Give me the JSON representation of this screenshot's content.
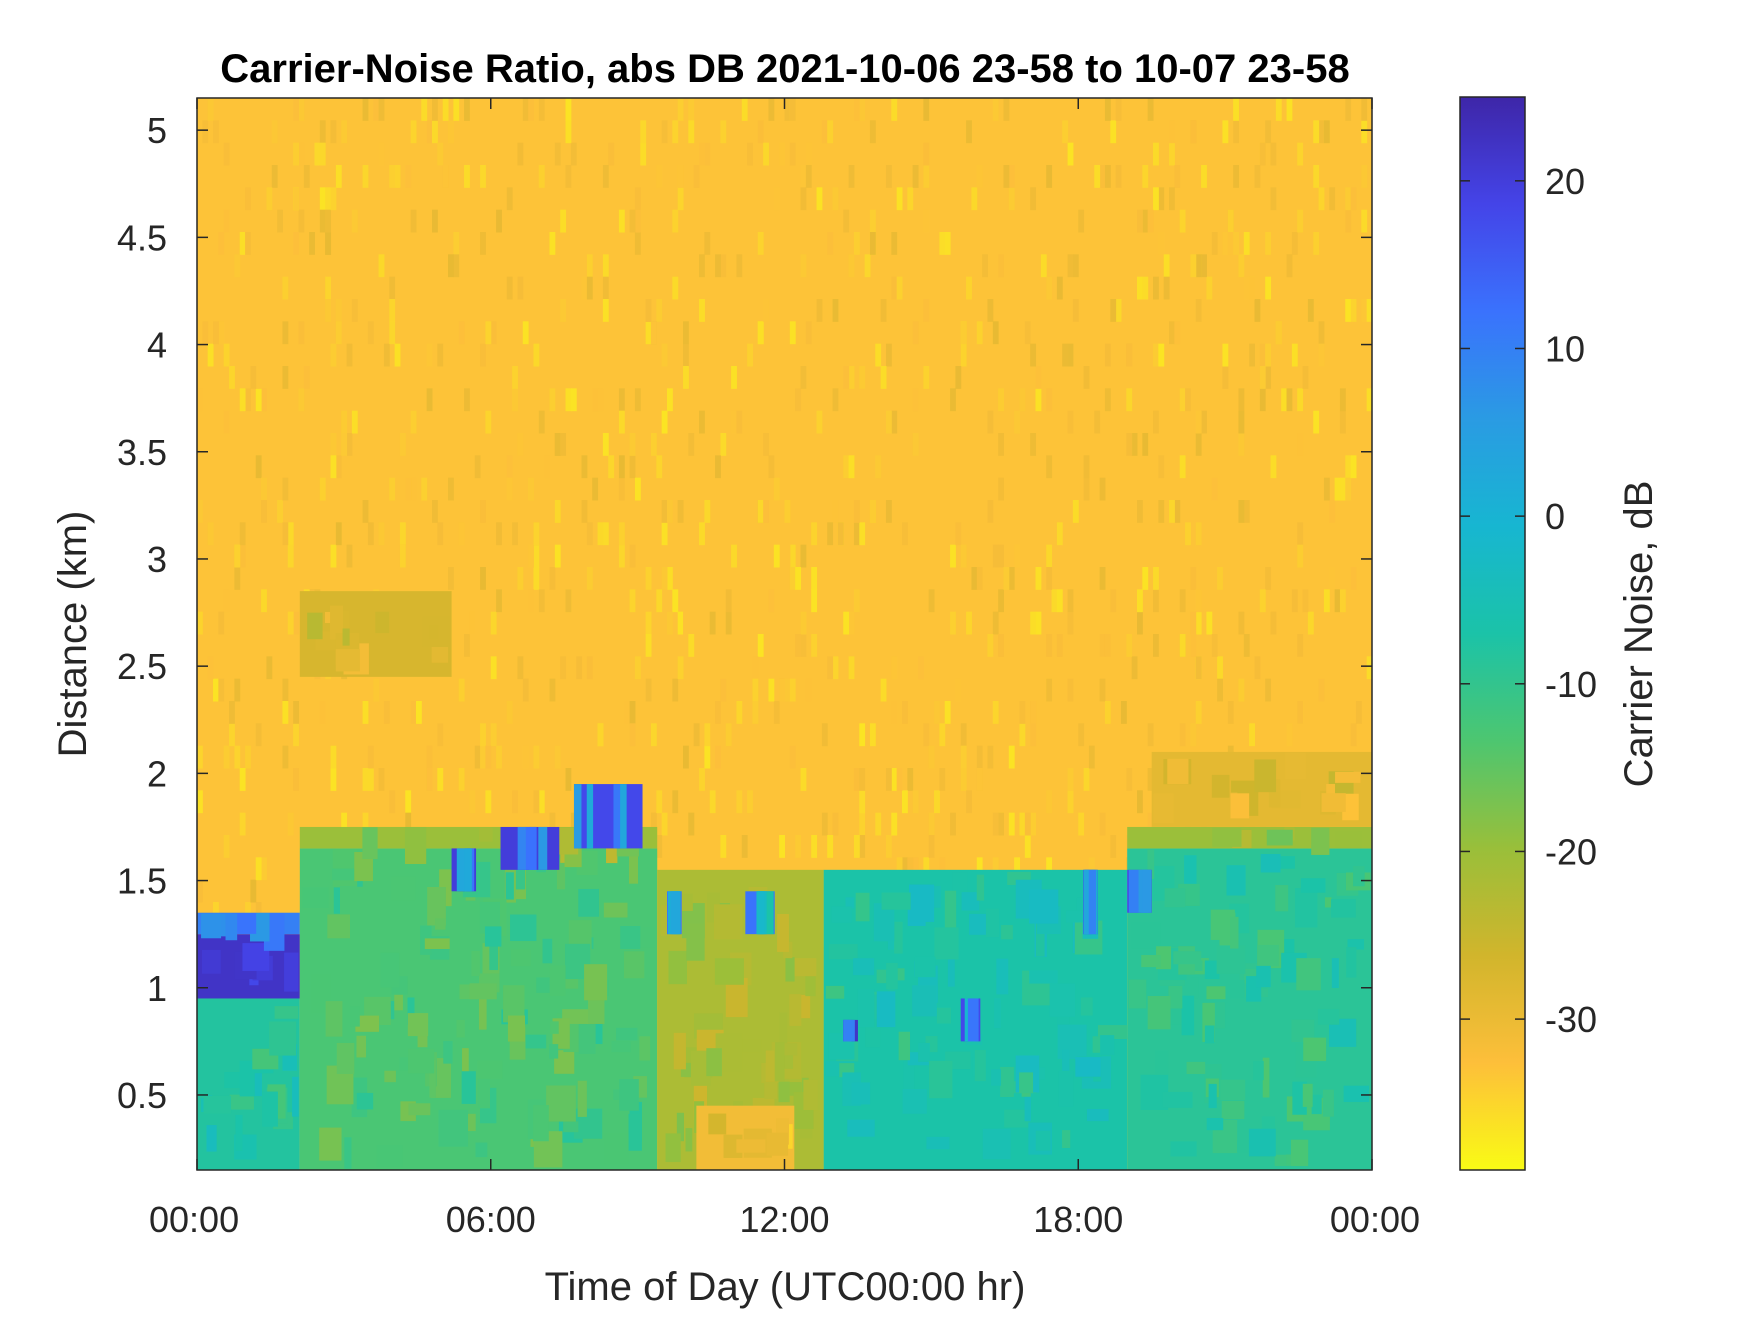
{
  "chart_data": {
    "type": "heatmap",
    "title": "Carrier-Noise Ratio, abs DB 2021-10-06 23-58 to 10-07 23-58",
    "xlabel": "Time of Day (UTC00:00 hr)",
    "ylabel": "Distance (km)",
    "x_unit": "hour of day",
    "xlim": [
      0,
      24
    ],
    "ylim": [
      0.15,
      5.15
    ],
    "xticks": [
      0,
      6,
      12,
      18,
      24
    ],
    "xtick_labels": [
      "00:00",
      "06:00",
      "12:00",
      "18:00",
      "00:00"
    ],
    "yticks": [
      0.5,
      1,
      1.5,
      2,
      2.5,
      3,
      3.5,
      4,
      4.5,
      5
    ],
    "ytick_labels": [
      "0.5",
      "1",
      "1.5",
      "2",
      "2.5",
      "3",
      "3.5",
      "4",
      "4.5",
      "5"
    ],
    "colorbar": {
      "label": "Carrier Noise, dB",
      "range": [
        -39,
        25
      ],
      "ticks": [
        20,
        10,
        0,
        -10,
        -20,
        -30
      ],
      "tick_labels": [
        "20",
        "10",
        "0",
        "-10",
        "-20",
        "-30"
      ],
      "colormap": "parula-reversed"
    },
    "background_level_db": -33,
    "regions": [
      {
        "x": [
          0,
          2.1
        ],
        "y": [
          0.15,
          0.95
        ],
        "value": -8
      },
      {
        "x": [
          0,
          2.1
        ],
        "y": [
          0.95,
          1.25
        ],
        "value": 22
      },
      {
        "x": [
          0,
          2.1
        ],
        "y": [
          1.25,
          1.35
        ],
        "value": 10
      },
      {
        "x": [
          2.1,
          9.4
        ],
        "y": [
          0.15,
          1.65
        ],
        "value": -13
      },
      {
        "x": [
          2.1,
          9.4
        ],
        "y": [
          1.65,
          1.75
        ],
        "value": -20
      },
      {
        "x": [
          2.1,
          5.2
        ],
        "y": [
          2.45,
          2.85
        ],
        "value": -27
      },
      {
        "x": [
          9.4,
          12.8
        ],
        "y": [
          0.15,
          1.55
        ],
        "value": -22
      },
      {
        "x": [
          10.2,
          12.2
        ],
        "y": [
          0.15,
          0.45
        ],
        "value": -31
      },
      {
        "x": [
          12.8,
          19.0
        ],
        "y": [
          0.15,
          1.55
        ],
        "value": -7
      },
      {
        "x": [
          19.0,
          24.0
        ],
        "y": [
          0.15,
          1.65
        ],
        "value": -9
      },
      {
        "x": [
          19.0,
          24.0
        ],
        "y": [
          1.65,
          1.75
        ],
        "value": -20
      },
      {
        "x": [
          19.5,
          24.0
        ],
        "y": [
          1.75,
          2.1
        ],
        "value": -29
      }
    ],
    "echo_patches": [
      {
        "x": [
          5.2,
          5.7
        ],
        "y": [
          1.45,
          1.65
        ],
        "value": 20
      },
      {
        "x": [
          6.2,
          7.4
        ],
        "y": [
          1.55,
          1.75
        ],
        "value": 20
      },
      {
        "x": [
          7.7,
          9.1
        ],
        "y": [
          1.65,
          1.95
        ],
        "value": 18
      },
      {
        "x": [
          9.6,
          9.9
        ],
        "y": [
          1.25,
          1.45
        ],
        "value": 12
      },
      {
        "x": [
          11.2,
          11.8
        ],
        "y": [
          1.25,
          1.45
        ],
        "value": 12
      },
      {
        "x": [
          13.2,
          13.5
        ],
        "y": [
          0.75,
          0.85
        ],
        "value": 22
      },
      {
        "x": [
          15.6,
          16.0
        ],
        "y": [
          0.75,
          0.95
        ],
        "value": 18
      },
      {
        "x": [
          18.1,
          18.4
        ],
        "y": [
          1.25,
          1.55
        ],
        "value": 18
      },
      {
        "x": [
          19.0,
          19.5
        ],
        "y": [
          1.35,
          1.55
        ],
        "value": 18
      }
    ]
  }
}
